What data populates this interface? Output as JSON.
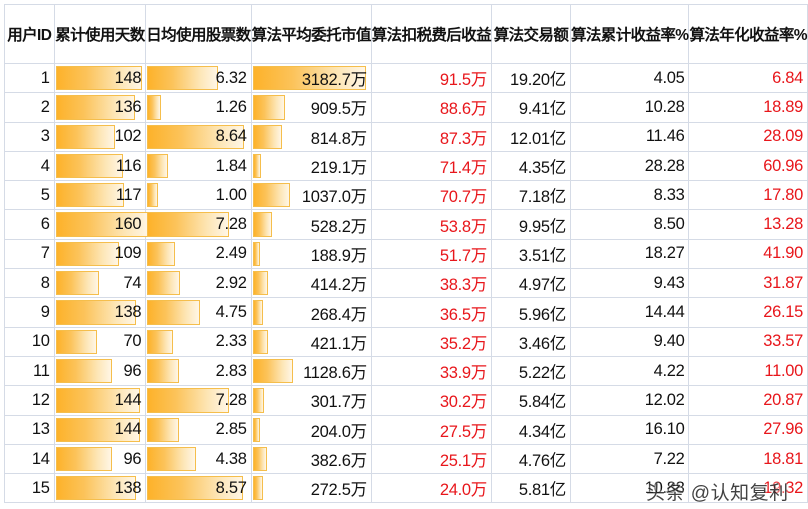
{
  "headers": [
    "用户ID",
    "累计使用天数",
    "日均使用股票数",
    "算法平均委托市值",
    "算法扣税费后收益",
    "算法交易额",
    "算法累计收益率%",
    "算法年化收益率%"
  ],
  "colors": {
    "bar_start": "#fdb22a",
    "bar_border": "#f5be4c",
    "positive_red": "#e8161b",
    "text": "#111111",
    "grid": "#d5dbe6"
  },
  "bar_max": {
    "days": 160,
    "shares": 8.64,
    "mv": 3182.7
  },
  "rows": [
    {
      "id": "1",
      "days": "148",
      "shares": "6.32",
      "mv": "3182.7万",
      "profit": "91.5万",
      "volume": "19.20亿",
      "cum": "4.05",
      "annual": "6.84",
      "days_n": 148,
      "shares_n": 6.32,
      "mv_n": 3182.7
    },
    {
      "id": "2",
      "days": "136",
      "shares": "1.26",
      "mv": "909.5万",
      "profit": "88.6万",
      "volume": "9.41亿",
      "cum": "10.28",
      "annual": "18.89",
      "days_n": 136,
      "shares_n": 1.26,
      "mv_n": 909.5
    },
    {
      "id": "3",
      "days": "102",
      "shares": "8.64",
      "mv": "814.8万",
      "profit": "87.3万",
      "volume": "12.01亿",
      "cum": "11.46",
      "annual": "28.09",
      "days_n": 102,
      "shares_n": 8.64,
      "mv_n": 814.8
    },
    {
      "id": "4",
      "days": "116",
      "shares": "1.84",
      "mv": "219.1万",
      "profit": "71.4万",
      "volume": "4.35亿",
      "cum": "28.28",
      "annual": "60.96",
      "days_n": 116,
      "shares_n": 1.84,
      "mv_n": 219.1
    },
    {
      "id": "5",
      "days": "117",
      "shares": "1.00",
      "mv": "1037.0万",
      "profit": "70.7万",
      "volume": "7.18亿",
      "cum": "8.33",
      "annual": "17.80",
      "days_n": 117,
      "shares_n": 1.0,
      "mv_n": 1037.0
    },
    {
      "id": "6",
      "days": "160",
      "shares": "7.28",
      "mv": "528.2万",
      "profit": "53.8万",
      "volume": "9.95亿",
      "cum": "8.50",
      "annual": "13.28",
      "days_n": 160,
      "shares_n": 7.28,
      "mv_n": 528.2
    },
    {
      "id": "7",
      "days": "109",
      "shares": "2.49",
      "mv": "188.9万",
      "profit": "51.7万",
      "volume": "3.51亿",
      "cum": "18.27",
      "annual": "41.90",
      "days_n": 109,
      "shares_n": 2.49,
      "mv_n": 188.9
    },
    {
      "id": "8",
      "days": "74",
      "shares": "2.92",
      "mv": "414.2万",
      "profit": "38.3万",
      "volume": "4.97亿",
      "cum": "9.43",
      "annual": "31.87",
      "days_n": 74,
      "shares_n": 2.92,
      "mv_n": 414.2
    },
    {
      "id": "9",
      "days": "138",
      "shares": "4.75",
      "mv": "268.4万",
      "profit": "36.5万",
      "volume": "5.96亿",
      "cum": "14.44",
      "annual": "26.15",
      "days_n": 138,
      "shares_n": 4.75,
      "mv_n": 268.4
    },
    {
      "id": "10",
      "days": "70",
      "shares": "2.33",
      "mv": "421.1万",
      "profit": "35.2万",
      "volume": "3.46亿",
      "cum": "9.40",
      "annual": "33.57",
      "days_n": 70,
      "shares_n": 2.33,
      "mv_n": 421.1
    },
    {
      "id": "11",
      "days": "96",
      "shares": "2.83",
      "mv": "1128.6万",
      "profit": "33.9万",
      "volume": "5.22亿",
      "cum": "4.22",
      "annual": "11.00",
      "days_n": 96,
      "shares_n": 2.83,
      "mv_n": 1128.6
    },
    {
      "id": "12",
      "days": "144",
      "shares": "7.28",
      "mv": "301.7万",
      "profit": "30.2万",
      "volume": "5.84亿",
      "cum": "12.02",
      "annual": "20.87",
      "days_n": 144,
      "shares_n": 7.28,
      "mv_n": 301.7
    },
    {
      "id": "13",
      "days": "144",
      "shares": "2.85",
      "mv": "204.0万",
      "profit": "27.5万",
      "volume": "4.34亿",
      "cum": "16.10",
      "annual": "27.96",
      "days_n": 144,
      "shares_n": 2.85,
      "mv_n": 204.0
    },
    {
      "id": "14",
      "days": "96",
      "shares": "4.38",
      "mv": "382.6万",
      "profit": "25.1万",
      "volume": "4.76亿",
      "cum": "7.22",
      "annual": "18.81",
      "days_n": 96,
      "shares_n": 4.38,
      "mv_n": 382.6
    },
    {
      "id": "15",
      "days": "138",
      "shares": "8.57",
      "mv": "272.5万",
      "profit": "24.0万",
      "volume": "5.81亿",
      "cum": "10.88",
      "annual": "19.32",
      "days_n": 138,
      "shares_n": 8.57,
      "mv_n": 272.5
    }
  ],
  "watermark": "头条 @认知复利"
}
